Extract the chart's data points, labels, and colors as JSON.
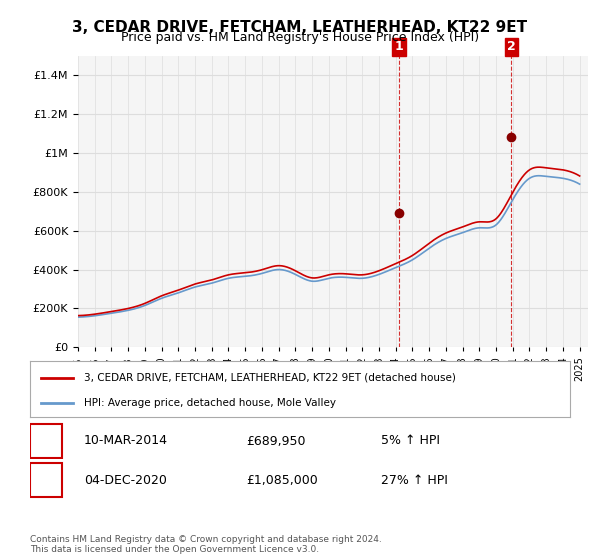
{
  "title": "3, CEDAR DRIVE, FETCHAM, LEATHERHEAD, KT22 9ET",
  "subtitle": "Price paid vs. HM Land Registry's House Price Index (HPI)",
  "legend_line1": "3, CEDAR DRIVE, FETCHAM, LEATHERHEAD, KT22 9ET (detached house)",
  "legend_line2": "HPI: Average price, detached house, Mole Valley",
  "annotation1_label": "1",
  "annotation1_date": "10-MAR-2014",
  "annotation1_price": "£689,950",
  "annotation1_hpi": "5% ↑ HPI",
  "annotation1_year": 2014.19,
  "annotation1_value": 689950,
  "annotation2_label": "2",
  "annotation2_date": "04-DEC-2020",
  "annotation2_price": "£1,085,000",
  "annotation2_hpi": "27% ↑ HPI",
  "annotation2_year": 2020.92,
  "annotation2_value": 1085000,
  "ylabel_color": "#222222",
  "line_red_color": "#cc0000",
  "line_blue_color": "#6699cc",
  "annotation_box_color": "#cc0000",
  "vline_color": "#cc0000",
  "grid_color": "#dddddd",
  "background_color": "#ffffff",
  "plot_bg_color": "#f5f5f5",
  "ylim": [
    0,
    1500000
  ],
  "yticks": [
    0,
    200000,
    400000,
    600000,
    800000,
    1000000,
    1200000,
    1400000
  ],
  "xlim_start": 1995,
  "xlim_end": 2025.5,
  "footnote": "Contains HM Land Registry data © Crown copyright and database right 2024.\nThis data is licensed under the Open Government Licence v3.0.",
  "hpi_years": [
    1995,
    1996,
    1997,
    1998,
    1999,
    2000,
    2001,
    2002,
    2003,
    2004,
    2005,
    2006,
    2007,
    2008,
    2009,
    2010,
    2011,
    2012,
    2013,
    2014,
    2015,
    2016,
    2017,
    2018,
    2019,
    2020,
    2021,
    2022,
    2023,
    2024,
    2025
  ],
  "hpi_values": [
    155000,
    162000,
    175000,
    190000,
    215000,
    252000,
    280000,
    310000,
    330000,
    355000,
    365000,
    380000,
    400000,
    375000,
    340000,
    355000,
    360000,
    355000,
    375000,
    410000,
    450000,
    510000,
    560000,
    590000,
    615000,
    630000,
    760000,
    870000,
    880000,
    870000,
    840000
  ],
  "sale_years": [
    2014.19,
    2020.92
  ],
  "sale_values": [
    689950,
    1085000
  ],
  "marker_color": "#880000"
}
